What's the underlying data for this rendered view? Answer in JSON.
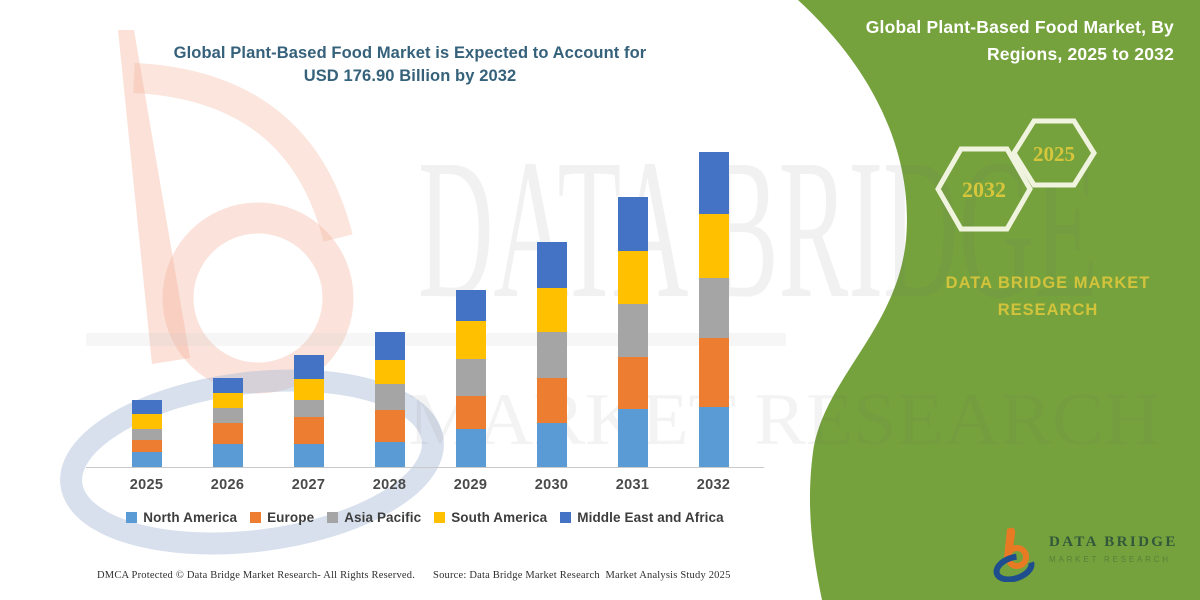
{
  "header": {
    "title_line1": "Global Plant-Based Food Market is Expected to Account for",
    "title_line2": "USD 176.90 Billion by 2032"
  },
  "side_panel": {
    "background_color": "#76a23d",
    "title_line1": "Global Plant-Based Food Market, By",
    "title_line2": "Regions, 2025 to 2032",
    "hexagons": [
      {
        "label": "2032"
      },
      {
        "label": "2025"
      }
    ],
    "hexagon_label_color": "#d5c63c",
    "brand_line1": "DATA BRIDGE MARKET",
    "brand_line2": "RESEARCH",
    "brand_color": "#d2c33c"
  },
  "logo": {
    "name": "DATA BRIDGE",
    "subtitle": "MARKET RESEARCH",
    "b_color": "#e87a24",
    "swoosh_color": "#1f4e8f"
  },
  "watermark": {
    "line1": "DATA BRIDGE",
    "line2": "MARKET RESEARCH"
  },
  "footer": {
    "dmca": "DMCA Protected © Data Bridge Market Research-  All Rights Reserved.",
    "source": "Source: Data Bridge Market Research  Market Analysis Study 2025"
  },
  "chart_data": {
    "type": "bar",
    "stacked": true,
    "title": "Global Plant-Based Food Market is Expected to Account for USD 176.90 Billion by 2032",
    "value_unit": "USD Billion",
    "total_2032": 176.9,
    "legend_position": "bottom",
    "y_axis_visible": false,
    "grid": false,
    "categories": [
      "2025",
      "2026",
      "2027",
      "2028",
      "2029",
      "2030",
      "2031",
      "2032"
    ],
    "series": [
      {
        "name": "North America",
        "color": "#5b9bd5",
        "values": [
          8.5,
          13.1,
          13.1,
          14.2,
          21.6,
          24.5,
          32.4,
          33.6
        ]
      },
      {
        "name": "Europe",
        "color": "#ed7d31",
        "values": [
          6.8,
          11.4,
          15.1,
          18.0,
          18.2,
          25.6,
          29.6,
          38.7
        ]
      },
      {
        "name": "Asia Pacific",
        "color": "#a5a5a5",
        "values": [
          6.3,
          8.5,
          9.4,
          14.2,
          21.1,
          25.6,
          29.6,
          34.1
        ]
      },
      {
        "name": "South America",
        "color": "#ffc000",
        "values": [
          8.5,
          8.5,
          11.9,
          13.7,
          21.1,
          25.0,
          29.6,
          35.8
        ]
      },
      {
        "name": "Middle East and Africa",
        "color": "#4472c4",
        "values": [
          7.4,
          8.5,
          13.6,
          15.7,
          17.6,
          25.6,
          30.2,
          34.7
        ]
      }
    ],
    "estimated_totals": [
      37.5,
      50.0,
      63.1,
      75.8,
      99.6,
      126.3,
      151.4,
      176.9
    ]
  }
}
